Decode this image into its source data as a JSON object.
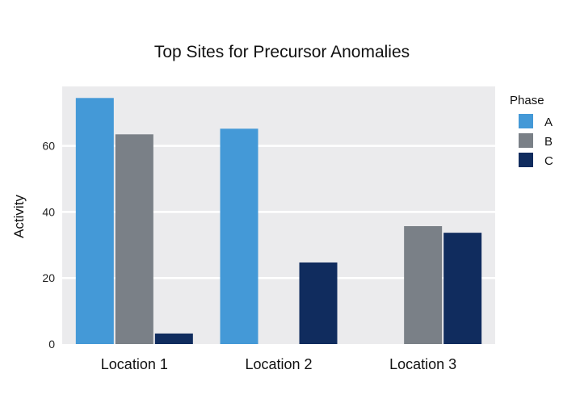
{
  "chart_data": {
    "type": "bar",
    "title": "Top Sites for Precursor Anomalies",
    "xlabel": "",
    "ylabel": "Activity",
    "categories": [
      "Location 1",
      "Location 2",
      "Location 3"
    ],
    "series": [
      {
        "name": "A",
        "color": "#4499d7",
        "values": [
          74.5,
          65.2,
          null
        ]
      },
      {
        "name": "B",
        "color": "#7a8087",
        "values": [
          63.5,
          null,
          35.7
        ]
      },
      {
        "name": "C",
        "color": "#102c5e",
        "values": [
          3.2,
          24.7,
          33.7
        ]
      }
    ],
    "yticks": [
      0,
      20,
      40,
      60
    ],
    "ylim": [
      0,
      78
    ],
    "grid": true,
    "legend": {
      "title": "Phase",
      "placement": "right"
    },
    "colors": {
      "panel": "#ebebed",
      "grid": "#ffffff"
    }
  }
}
